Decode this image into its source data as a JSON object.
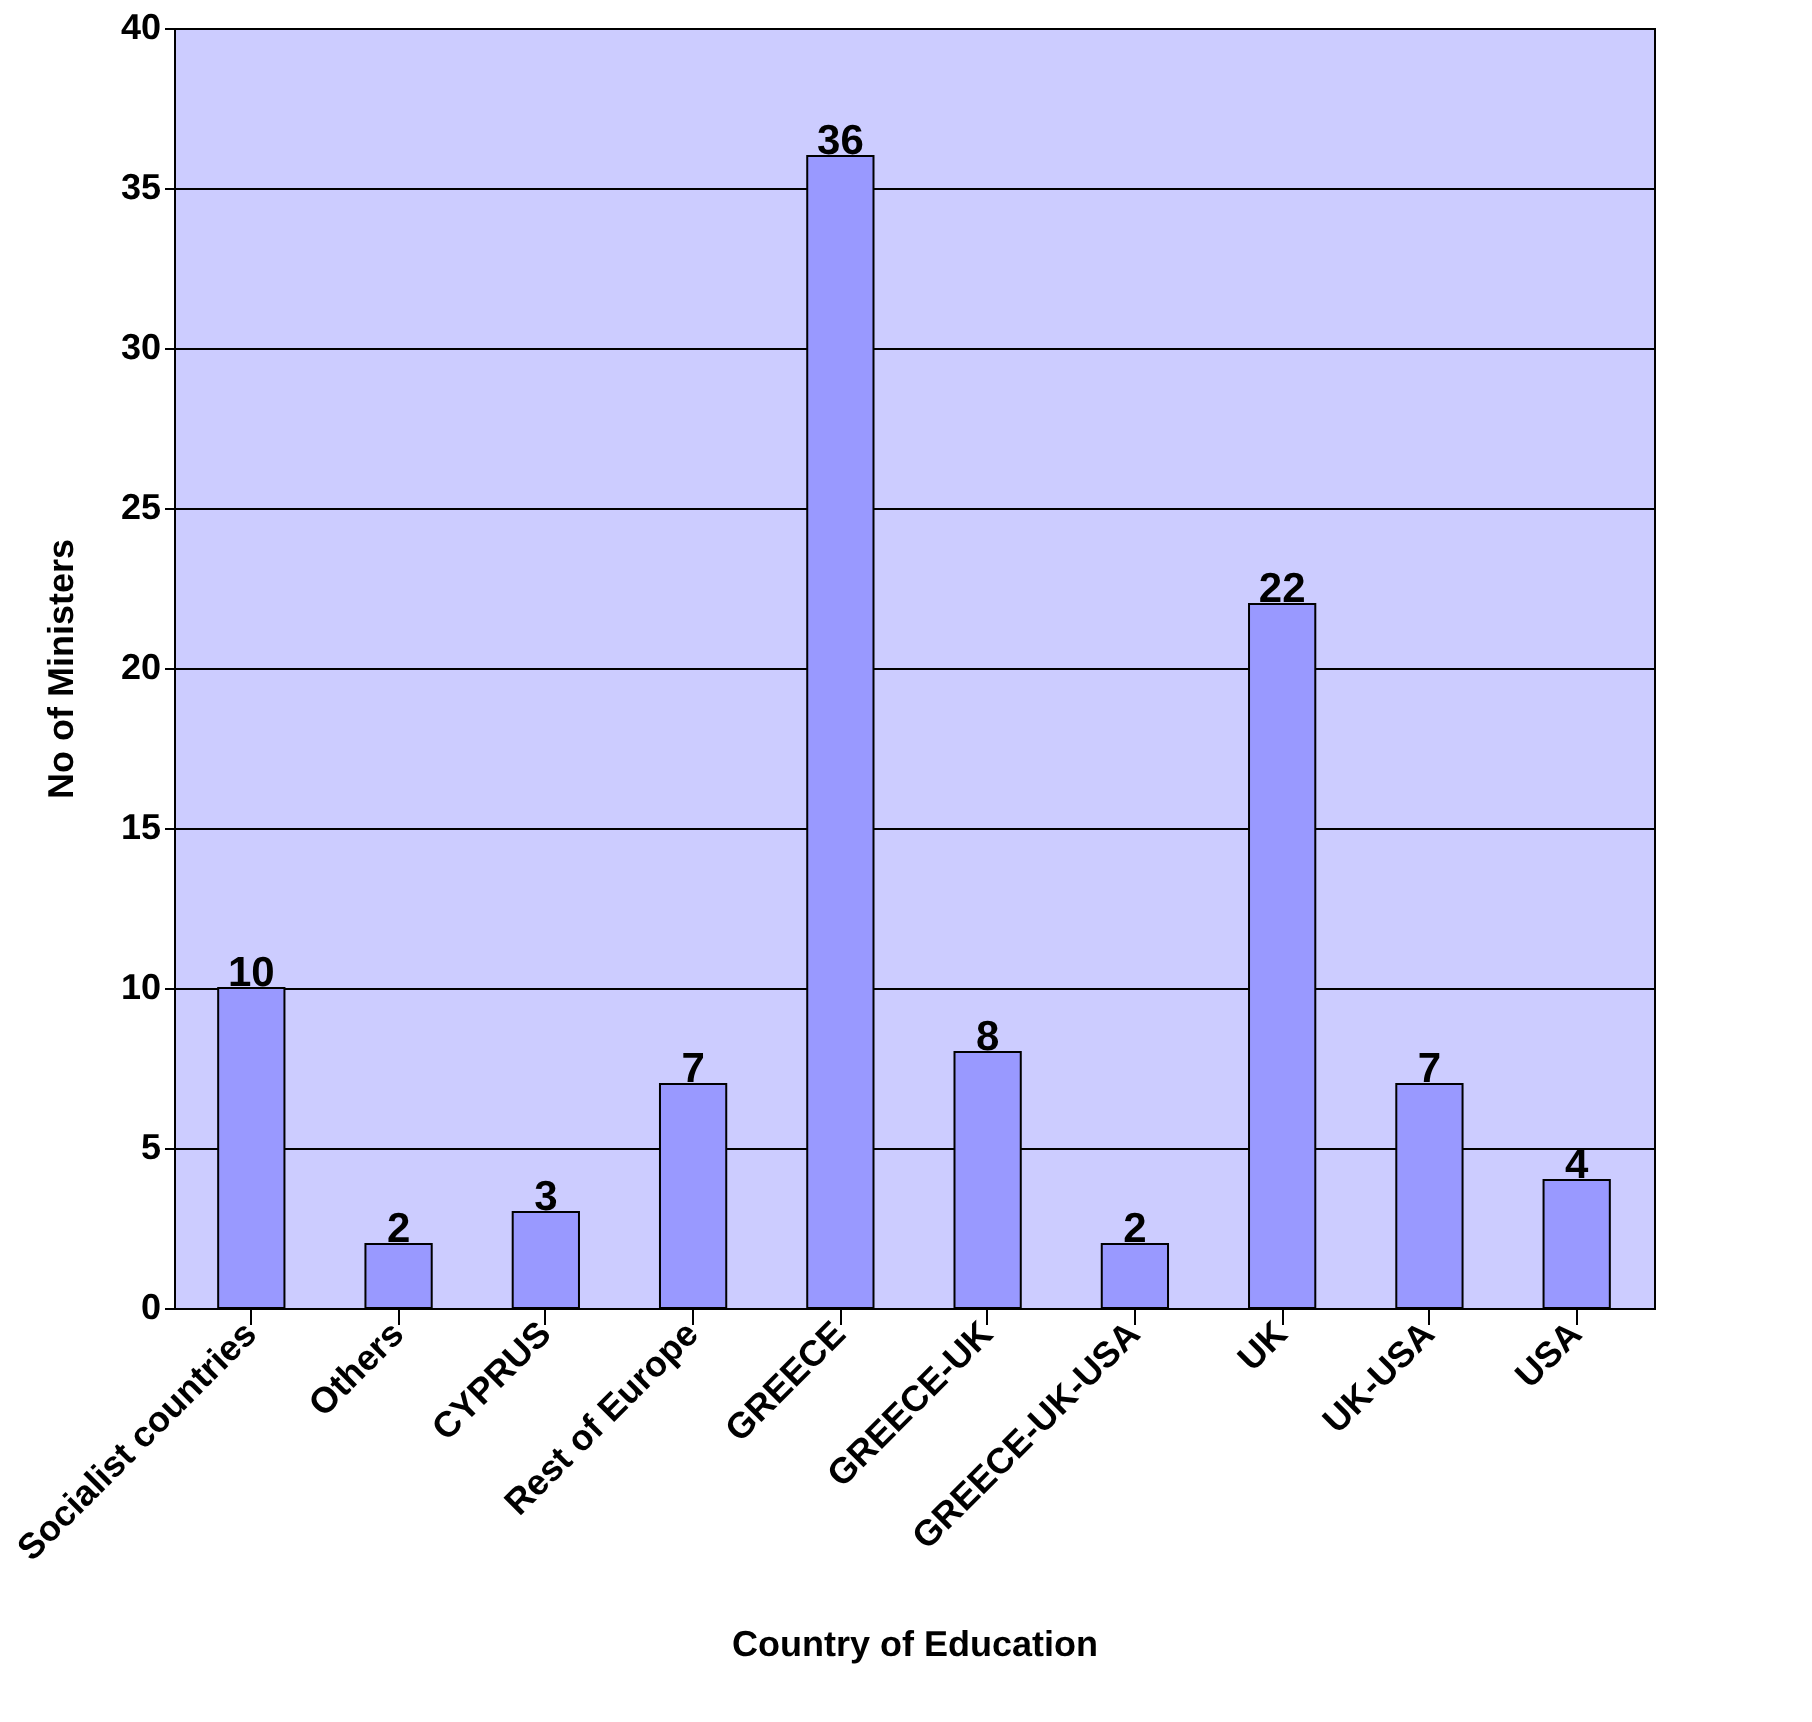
{
  "chart_data": {
    "type": "bar",
    "xlabel": "Country of Education",
    "ylabel": "No of Ministers",
    "categories": [
      "Socialist countries",
      "Others",
      "CYPRUS",
      "Rest of Europe",
      "GREECE",
      "GREECE-UK",
      "GREECE-UK-USA",
      "UK",
      "UK-USA",
      "USA"
    ],
    "values": [
      10,
      2,
      3,
      7,
      36,
      8,
      2,
      22,
      7,
      4
    ],
    "color": "#9999ff",
    "ylim": [
      0,
      40
    ],
    "yticks": [
      0,
      5,
      10,
      15,
      20,
      25,
      30,
      35,
      40
    ],
    "grid": "y",
    "data_labels": true
  }
}
